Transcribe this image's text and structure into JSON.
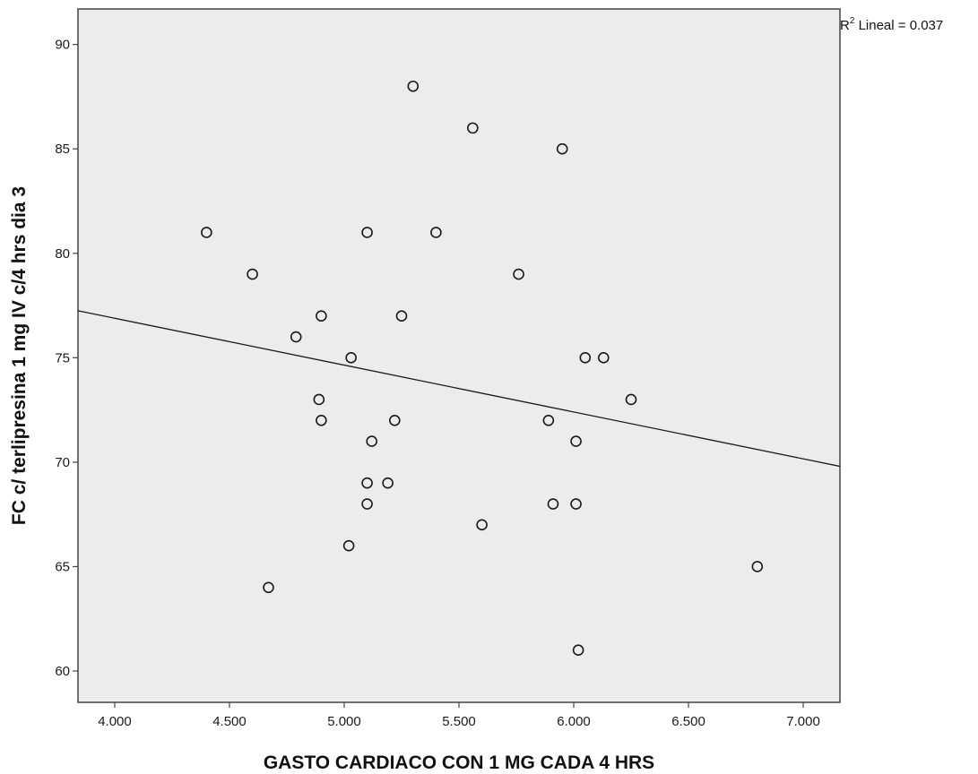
{
  "chart_data": {
    "type": "scatter",
    "title": "",
    "xlabel": "GASTO CARDIACO CON 1 MG CADA 4 HRS",
    "ylabel": "FC c/ terlipresina 1 mg IV c/4 hrs dia 3",
    "xlim": [
      3.84,
      7.16
    ],
    "ylim": [
      58.5,
      91.7
    ],
    "x_ticks": [
      4.0,
      4.5,
      5.0,
      5.5,
      6.0,
      6.5,
      7.0
    ],
    "x_tick_labels": [
      "4.000",
      "4.500",
      "5.000",
      "5.500",
      "6.000",
      "6.500",
      "7.000"
    ],
    "y_ticks": [
      60,
      65,
      70,
      75,
      80,
      85,
      90
    ],
    "y_tick_labels": [
      "60",
      "65",
      "70",
      "75",
      "80",
      "85",
      "90"
    ],
    "grid": false,
    "points": [
      {
        "x": 5.3,
        "y": 88
      },
      {
        "x": 5.56,
        "y": 86
      },
      {
        "x": 5.95,
        "y": 85
      },
      {
        "x": 4.4,
        "y": 81
      },
      {
        "x": 5.1,
        "y": 81
      },
      {
        "x": 5.4,
        "y": 81
      },
      {
        "x": 4.6,
        "y": 79
      },
      {
        "x": 5.76,
        "y": 79
      },
      {
        "x": 4.9,
        "y": 77
      },
      {
        "x": 5.25,
        "y": 77
      },
      {
        "x": 4.79,
        "y": 76
      },
      {
        "x": 5.03,
        "y": 75
      },
      {
        "x": 6.05,
        "y": 75
      },
      {
        "x": 6.13,
        "y": 75
      },
      {
        "x": 4.89,
        "y": 73
      },
      {
        "x": 6.25,
        "y": 73
      },
      {
        "x": 4.9,
        "y": 72
      },
      {
        "x": 5.22,
        "y": 72
      },
      {
        "x": 5.89,
        "y": 72
      },
      {
        "x": 5.12,
        "y": 71
      },
      {
        "x": 6.01,
        "y": 71
      },
      {
        "x": 5.1,
        "y": 69
      },
      {
        "x": 5.19,
        "y": 69
      },
      {
        "x": 5.1,
        "y": 68
      },
      {
        "x": 5.91,
        "y": 68
      },
      {
        "x": 6.01,
        "y": 68
      },
      {
        "x": 5.6,
        "y": 67
      },
      {
        "x": 5.02,
        "y": 66
      },
      {
        "x": 6.8,
        "y": 65
      },
      {
        "x": 4.67,
        "y": 64
      },
      {
        "x": 6.02,
        "y": 61
      }
    ],
    "fit_line": {
      "x": [
        3.84,
        7.16
      ],
      "y": [
        77.25,
        69.8
      ]
    },
    "annotation": {
      "prefix": "R",
      "superscript": "2",
      "suffix": " Lineal = 0.037"
    },
    "colors": {
      "plot_background": "#ececec",
      "marker": "#1a1a1a",
      "line": "#1a1a1a",
      "frame": "#444444"
    }
  }
}
